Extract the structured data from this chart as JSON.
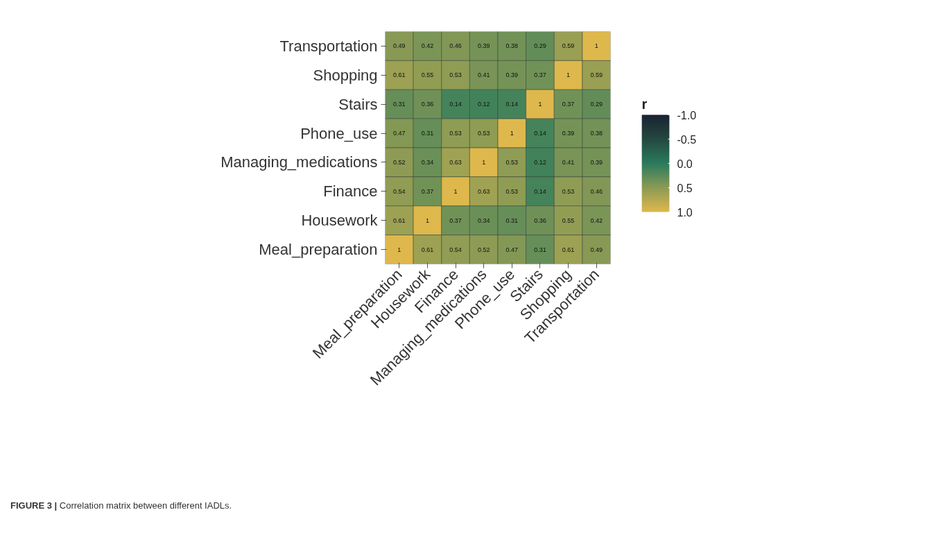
{
  "chart_data": {
    "type": "heatmap",
    "clabel": "r",
    "categories": [
      "Meal_preparation",
      "Housework",
      "Finance",
      "Managing_medications",
      "Phone_use",
      "Stairs",
      "Shopping",
      "Transportation"
    ],
    "y_categories": [
      "Transportation",
      "Shopping",
      "Stairs",
      "Phone_use",
      "Managing_medications",
      "Finance",
      "Housework",
      "Meal_preparation"
    ],
    "cells": [
      [
        0.49,
        0.42,
        0.46,
        0.39,
        0.38,
        0.29,
        0.59,
        1
      ],
      [
        0.61,
        0.55,
        0.53,
        0.41,
        0.39,
        0.37,
        1,
        0.59
      ],
      [
        0.31,
        0.36,
        0.14,
        0.12,
        0.14,
        1,
        0.37,
        0.29
      ],
      [
        0.47,
        0.31,
        0.53,
        0.53,
        1,
        0.14,
        0.39,
        0.38
      ],
      [
        0.52,
        0.34,
        0.63,
        1,
        0.53,
        0.12,
        0.41,
        0.39
      ],
      [
        0.54,
        0.37,
        1,
        0.63,
        0.53,
        0.14,
        0.53,
        0.46
      ],
      [
        0.61,
        1,
        0.37,
        0.34,
        0.31,
        0.36,
        0.55,
        0.42
      ],
      [
        1,
        0.61,
        0.54,
        0.52,
        0.47,
        0.31,
        0.61,
        0.49
      ]
    ],
    "data_labels": true,
    "clim": [
      -1,
      1
    ],
    "cticks": [
      {
        "value": -1,
        "label": "-1.0"
      },
      -0.5,
      {
        "value": 0,
        "label": "0.0"
      },
      0.5,
      {
        "value": 1,
        "label": "1.0"
      }
    ],
    "annotations": [
      "FIGURE 3 | Correlation matrix between different IADLs."
    ]
  }
}
